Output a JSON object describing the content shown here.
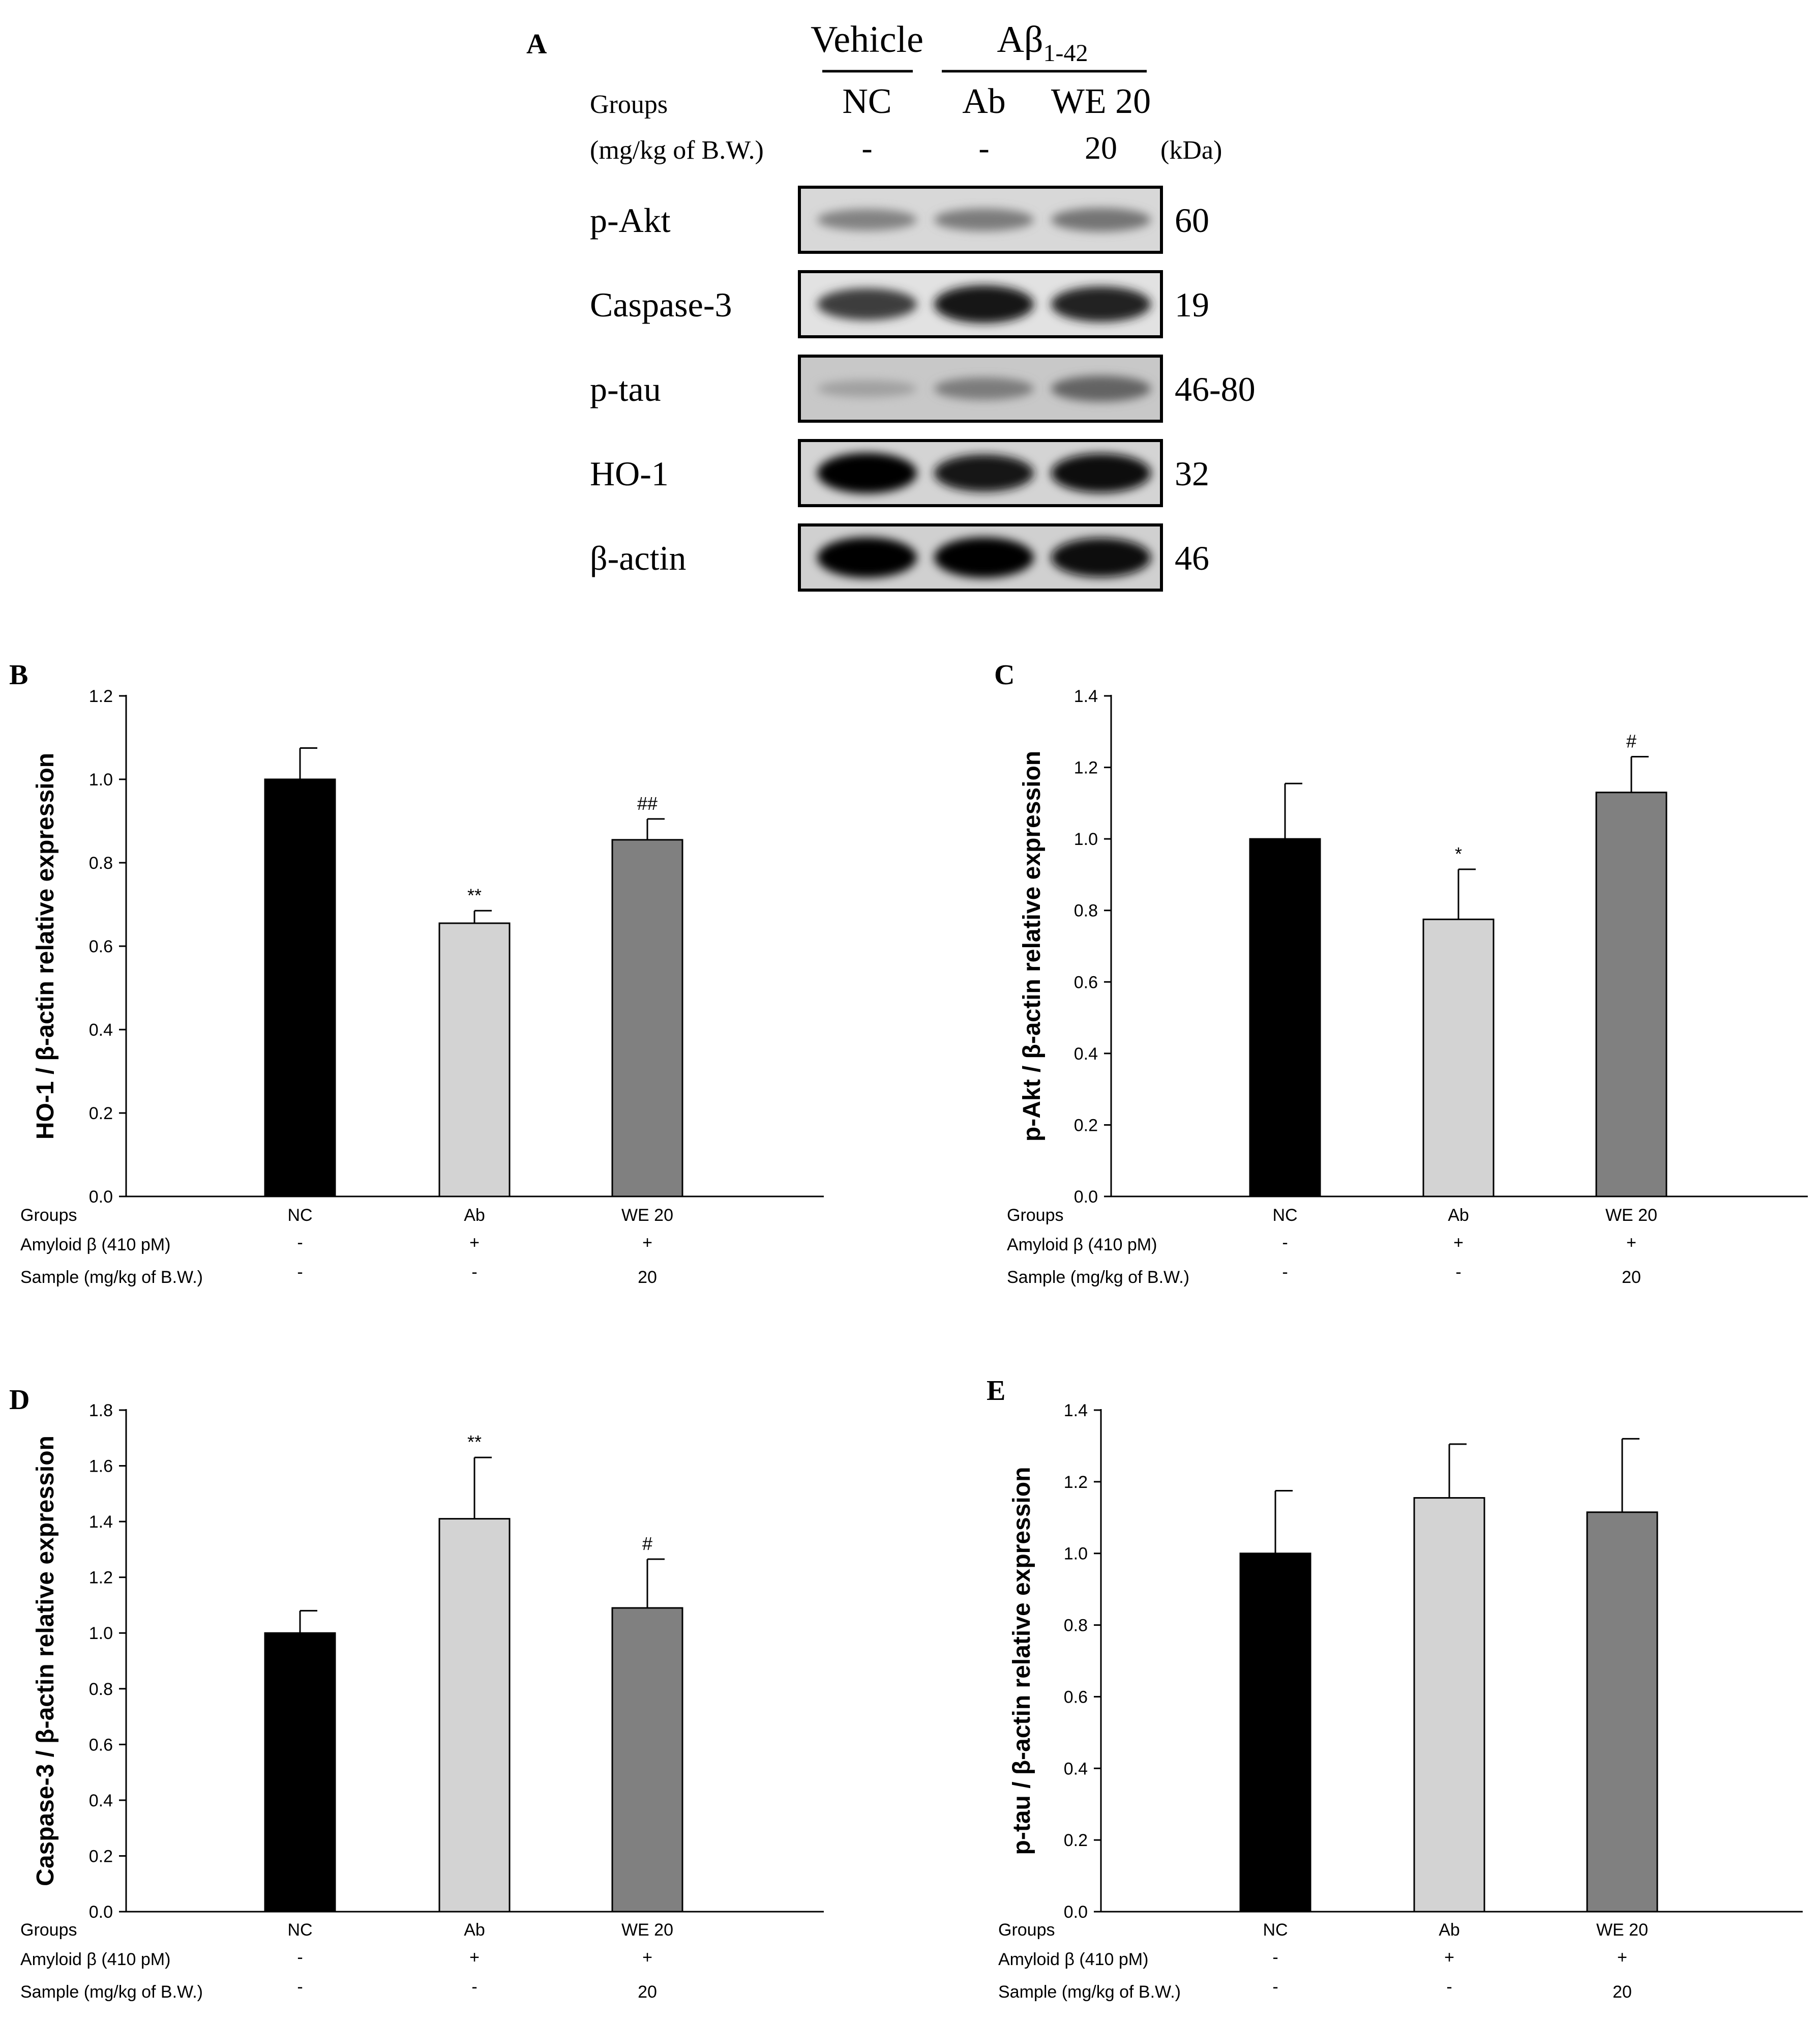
{
  "blot": {
    "panel_letter": "A",
    "header": {
      "vehicle": "Vehicle",
      "abeta_main": "Aβ",
      "abeta_sub": "1-42"
    },
    "row_labels": {
      "groups": "Groups",
      "dose": "(mg/kg of B.W.)"
    },
    "lanes": [
      {
        "group": "NC",
        "dose": "-"
      },
      {
        "group": "Ab",
        "dose": "-"
      },
      {
        "group": "WE 20",
        "dose": "20"
      }
    ],
    "kda_label": "(kDa)",
    "bands": [
      {
        "protein": "p-Akt",
        "kda": "60",
        "intensity": [
          0.35,
          0.38,
          0.42
        ]
      },
      {
        "protein": "Caspase-3",
        "kda": "19",
        "intensity": [
          0.7,
          0.9,
          0.82
        ]
      },
      {
        "protein": "p-tau",
        "kda": "46-80",
        "intensity": [
          0.2,
          0.38,
          0.5
        ]
      },
      {
        "protein": "HO-1",
        "kda": "32",
        "intensity": [
          1.0,
          0.88,
          0.95
        ]
      },
      {
        "protein": "β-actin",
        "kda": "46",
        "intensity": [
          1.0,
          1.0,
          0.95
        ]
      }
    ]
  },
  "colors": {
    "nc": "#000000",
    "ab": "#d3d3d3",
    "we": "#808080",
    "axis": "#000000"
  },
  "conditions": {
    "row_labels": [
      "Groups",
      "Amyloid β (410 pM)",
      "Sample (mg/kg of B.W.)"
    ],
    "groups": [
      "NC",
      "Ab",
      "WE 20"
    ],
    "amyloid": [
      "-",
      "+",
      "+"
    ],
    "sample": [
      "-",
      "-",
      "20"
    ]
  },
  "chart_data": [
    {
      "panel": "B",
      "type": "bar",
      "categories": [
        "NC",
        "Ab",
        "WE 20"
      ],
      "values": [
        1.0,
        0.655,
        0.855
      ],
      "errors": [
        0.075,
        0.03,
        0.05
      ],
      "annotations": [
        "",
        "**",
        "##"
      ],
      "ylabel": "HO-1 / β-actin relative expression",
      "ylim": [
        0,
        1.2
      ],
      "ticks": [
        "0.0",
        "0.2",
        "0.4",
        "0.6",
        "0.8",
        "1.0",
        "1.2"
      ]
    },
    {
      "panel": "C",
      "type": "bar",
      "categories": [
        "NC",
        "Ab",
        "WE 20"
      ],
      "values": [
        1.0,
        0.775,
        1.13
      ],
      "errors": [
        0.155,
        0.14,
        0.1
      ],
      "annotations": [
        "",
        "*",
        "#"
      ],
      "ylabel": "p-Akt / β-actin relative expression",
      "ylim": [
        0,
        1.4
      ],
      "ticks": [
        "0.0",
        "0.2",
        "0.4",
        "0.6",
        "0.8",
        "1.0",
        "1.2",
        "1.4"
      ]
    },
    {
      "panel": "D",
      "type": "bar",
      "categories": [
        "NC",
        "Ab",
        "WE 20"
      ],
      "values": [
        1.0,
        1.41,
        1.09
      ],
      "errors": [
        0.08,
        0.22,
        0.175
      ],
      "annotations": [
        "",
        "**",
        "#"
      ],
      "ylabel": "Caspase-3 / β-actin relative expression",
      "ylim": [
        0,
        1.8
      ],
      "ticks": [
        "0.0",
        "0.2",
        "0.4",
        "0.6",
        "0.8",
        "1.0",
        "1.2",
        "1.4",
        "1.6",
        "1.8"
      ]
    },
    {
      "panel": "E",
      "type": "bar",
      "categories": [
        "NC",
        "Ab",
        "WE 20"
      ],
      "values": [
        1.0,
        1.155,
        1.115
      ],
      "errors": [
        0.175,
        0.15,
        0.205
      ],
      "annotations": [
        "",
        "",
        ""
      ],
      "ylabel": "p-tau / β-actin relative expression",
      "ylim": [
        0,
        1.4
      ],
      "ticks": [
        "0.0",
        "0.2",
        "0.4",
        "0.6",
        "0.8",
        "1.0",
        "1.2",
        "1.4"
      ]
    }
  ]
}
